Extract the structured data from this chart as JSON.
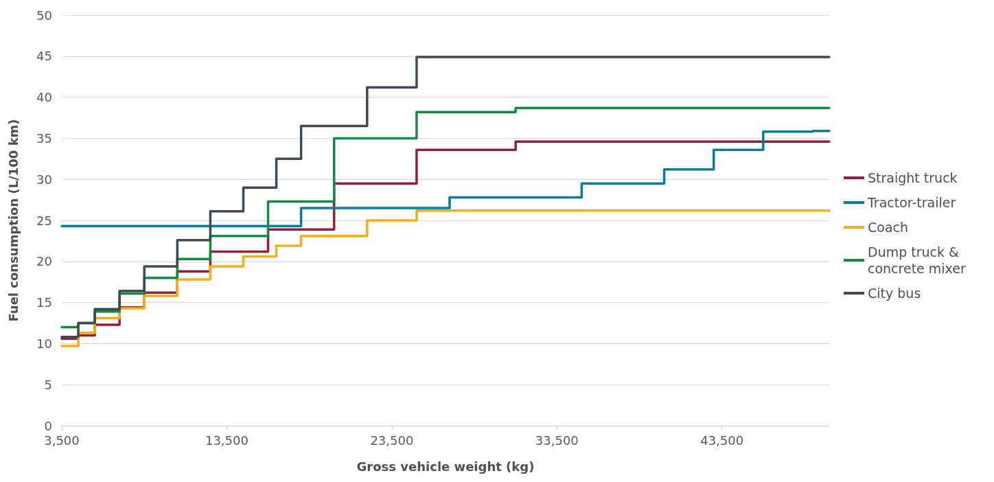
{
  "chart_data": {
    "type": "step",
    "xlabel": "Gross vehicle weight (kg)",
    "ylabel": "Fuel consumption (L/100 km)",
    "xlim": [
      3500,
      50000
    ],
    "xticks": [
      {
        "value": 3500,
        "label": "3,500"
      },
      {
        "value": 13500,
        "label": "13,500"
      },
      {
        "value": 23500,
        "label": "23,500"
      },
      {
        "value": 33500,
        "label": "33,500"
      },
      {
        "value": 43500,
        "label": "43,500"
      }
    ],
    "ylim": [
      0,
      50
    ],
    "yticks": [
      0,
      5,
      10,
      15,
      20,
      25,
      30,
      35,
      40,
      45,
      50
    ],
    "grid": "y",
    "legend": "right",
    "marker": "none",
    "line_style": "solid",
    "series": [
      {
        "name": "Straight truck",
        "color": "#9b1b3b",
        "x": [
          3500,
          4500,
          5500,
          7000,
          8500,
          10500,
          12500,
          16000,
          20000,
          25000,
          31000,
          50000
        ],
        "values": [
          10.6,
          11.0,
          12.3,
          14.4,
          16.2,
          18.8,
          21.2,
          23.9,
          29.5,
          33.6,
          34.6,
          34.6
        ]
      },
      {
        "name": "Tractor-trailer",
        "color": "#007f96",
        "x": [
          3500,
          18000,
          27000,
          35000,
          40000,
          43000,
          46000,
          49000,
          50000
        ],
        "values": [
          24.3,
          26.5,
          27.8,
          29.5,
          31.2,
          33.6,
          35.8,
          35.9,
          35.9
        ]
      },
      {
        "name": "Coach",
        "color": "#f2ae1c",
        "x": [
          3500,
          4500,
          5500,
          7000,
          8500,
          10500,
          12500,
          14500,
          16500,
          18000,
          22000,
          25000,
          50000
        ],
        "values": [
          9.7,
          11.3,
          13.1,
          14.3,
          15.8,
          17.8,
          19.4,
          20.6,
          21.9,
          23.1,
          25.0,
          26.2,
          26.2
        ]
      },
      {
        "name": "Dump truck & concrete mixer",
        "color": "#138a46",
        "x": [
          3500,
          4500,
          5500,
          7000,
          8500,
          10500,
          12500,
          16000,
          20000,
          25000,
          31000,
          50000
        ],
        "values": [
          12.0,
          12.5,
          13.9,
          16.1,
          18.0,
          20.3,
          23.1,
          27.3,
          35.0,
          38.2,
          38.7,
          38.7
        ]
      },
      {
        "name": "City bus",
        "color": "#3d4a55",
        "x": [
          3500,
          4500,
          5500,
          7000,
          8500,
          10500,
          12500,
          14500,
          16500,
          18000,
          22000,
          25000,
          50000
        ],
        "values": [
          10.8,
          12.5,
          14.2,
          16.4,
          19.4,
          22.6,
          26.1,
          29.0,
          32.5,
          36.5,
          41.2,
          44.9,
          44.9
        ]
      }
    ]
  }
}
